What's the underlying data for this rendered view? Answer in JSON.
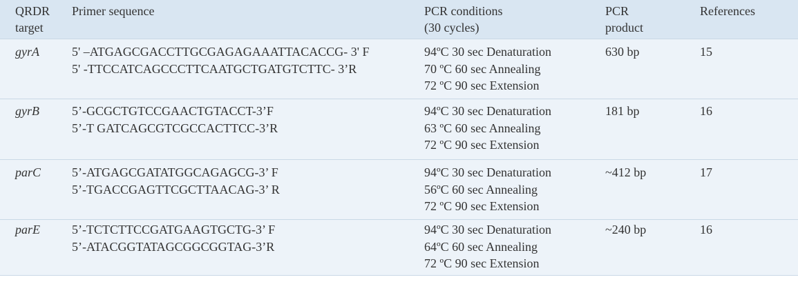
{
  "table": {
    "headers": [
      [
        "QRDR",
        "target"
      ],
      [
        "Primer sequence"
      ],
      [
        "PCR conditions",
        "(30 cycles)"
      ],
      [
        "PCR",
        "product"
      ],
      [
        "References"
      ]
    ],
    "rows": [
      {
        "target": "gyrA",
        "primers": [
          "5' –ATGAGCGACCTTGCGAGAGAAATTACACCG- 3' F",
          "5' -TTCCATCAGCCCTTCAATGCTGATGTCTTC- 3’R"
        ],
        "conditions": [
          "94ºC 30 sec Denaturation",
          "70 ºC 60 sec Annealing",
          "72 ºC 90 sec Extension"
        ],
        "product": "630 bp",
        "reference": "15"
      },
      {
        "target": "gyrB",
        "primers": [
          "5’-GCGCTGTCCGAACTGTACCT-3’F",
          "5’-T GATCAGCGTCGCCACTTCC-3’R"
        ],
        "conditions": [
          "94ºC 30 sec Denaturation",
          "63 ºC 60 sec Annealing",
          "72 ºC 90 sec Extension"
        ],
        "product": "181 bp",
        "reference": "16"
      },
      {
        "target": "parC",
        "primers": [
          "5’-ATGAGCGATATGGCAGAGCG-3’ F",
          "5’-TGACCGAGTTCGCTTAACAG-3’ R"
        ],
        "conditions": [
          "94ºC 30 sec Denaturation",
          "56ºC 60 sec Annealing",
          "72 ºC 90 sec Extension"
        ],
        "product": "~412 bp",
        "reference": "17"
      },
      {
        "target": "parE",
        "primers": [
          "5’-TCTCTTCCGATGAAGTGCTG-3’ F",
          "5’-ATACGGTATAGCGGCGGTAG-3’R"
        ],
        "conditions": [
          "94ºC 30 sec Denaturation",
          "64ºC 60 sec Annealing",
          "72 ºC 90 sec Extension"
        ],
        "product": "~240 bp",
        "reference": "16"
      }
    ]
  }
}
